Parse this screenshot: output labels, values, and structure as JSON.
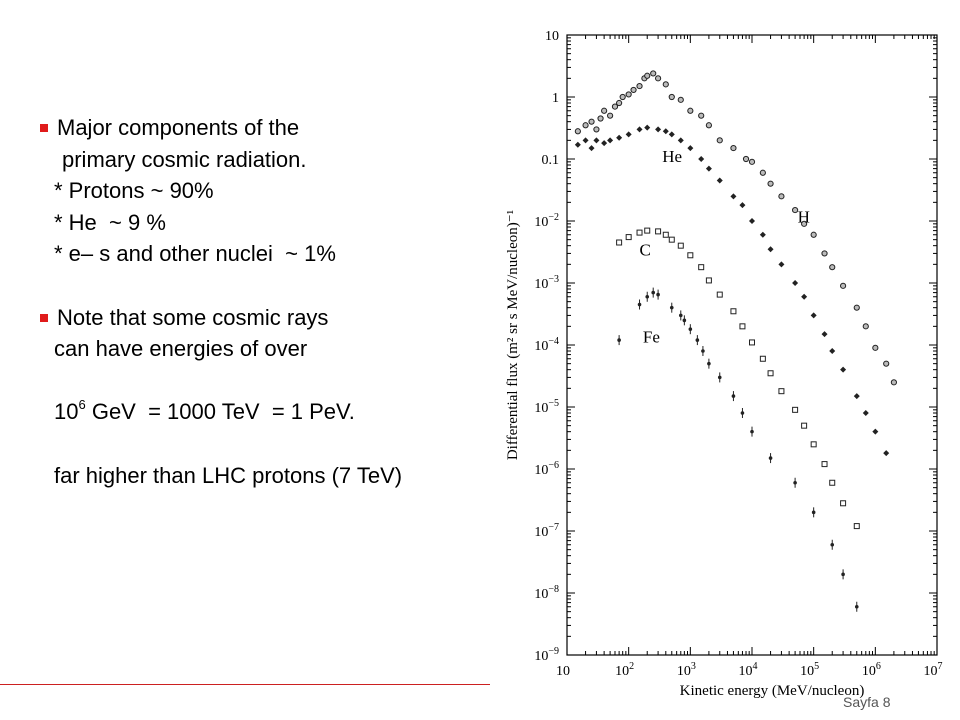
{
  "slide": {
    "bullets": [
      {
        "lines": [
          "Major components of the",
          "primary cosmic radiation.",
          "* Protons ~ 90%",
          "* He  ~ 9 %",
          "* e– s and other nuclei  ~ 1%"
        ]
      },
      {
        "lines": [
          "Note that some cosmic rays",
          "can have energies of over"
        ]
      }
    ],
    "energy_base": "10",
    "energy_exp": "6",
    "energy_rest": " GeV  = 1000 TeV  = 1 PeV.",
    "comparison": "far higher than LHC protons (7 TeV)",
    "footer": "Sayfa 8",
    "accent_color": "#e01b1b"
  },
  "chart_data": {
    "type": "scatter",
    "xlabel": "Kinetic energy (MeV/nucleon)",
    "ylabel": "Differential flux (m² sr s MeV/nucleon)⁻¹",
    "xscale": "log",
    "yscale": "log",
    "xlim": [
      10,
      10000000
    ],
    "ylim": [
      1e-09,
      10
    ],
    "x_ticks": [
      {
        "base": "10",
        "exp": ""
      },
      {
        "base": "10",
        "exp": "2"
      },
      {
        "base": "10",
        "exp": "3"
      },
      {
        "base": "10",
        "exp": "4"
      },
      {
        "base": "10",
        "exp": "5"
      },
      {
        "base": "10",
        "exp": "6"
      },
      {
        "base": "10",
        "exp": "7"
      }
    ],
    "y_ticks": [
      {
        "base": "10",
        "exp": ""
      },
      {
        "base": "1",
        "exp": ""
      },
      {
        "base": "0.1",
        "exp": ""
      },
      {
        "base": "10",
        "exp": "−2"
      },
      {
        "base": "10",
        "exp": "−3"
      },
      {
        "base": "10",
        "exp": "−4"
      },
      {
        "base": "10",
        "exp": "−5"
      },
      {
        "base": "10",
        "exp": "−6"
      },
      {
        "base": "10",
        "exp": "−7"
      },
      {
        "base": "10",
        "exp": "−8"
      },
      {
        "base": "10",
        "exp": "−9"
      }
    ],
    "series": [
      {
        "name": "H",
        "marker": "circle",
        "points": [
          [
            15,
            0.28
          ],
          [
            20,
            0.35
          ],
          [
            25,
            0.4
          ],
          [
            30,
            0.3
          ],
          [
            35,
            0.45
          ],
          [
            40,
            0.6
          ],
          [
            50,
            0.5
          ],
          [
            60,
            0.7
          ],
          [
            70,
            0.8
          ],
          [
            80,
            1.0
          ],
          [
            100,
            1.1
          ],
          [
            120,
            1.3
          ],
          [
            150,
            1.5
          ],
          [
            180,
            2.0
          ],
          [
            200,
            2.2
          ],
          [
            250,
            2.4
          ],
          [
            300,
            2.0
          ],
          [
            400,
            1.6
          ],
          [
            500,
            1.0
          ],
          [
            700,
            0.9
          ],
          [
            1000,
            0.6
          ],
          [
            1500,
            0.5
          ],
          [
            2000,
            0.35
          ],
          [
            3000,
            0.2
          ],
          [
            5000,
            0.15
          ],
          [
            8000,
            0.1
          ],
          [
            10000,
            0.09
          ],
          [
            15000,
            0.06
          ],
          [
            20000,
            0.04
          ],
          [
            30000,
            0.025
          ],
          [
            50000,
            0.015
          ],
          [
            70000,
            0.009
          ],
          [
            100000,
            0.006
          ],
          [
            150000,
            0.003
          ],
          [
            200000,
            0.0018
          ],
          [
            300000,
            0.0009
          ],
          [
            500000,
            0.0004
          ],
          [
            700000,
            0.0002
          ],
          [
            1000000,
            9e-05
          ],
          [
            1500000,
            5e-05
          ],
          [
            2000000,
            2.5e-05
          ]
        ]
      },
      {
        "name": "He",
        "marker": "diamond",
        "points": [
          [
            15,
            0.17
          ],
          [
            20,
            0.2
          ],
          [
            25,
            0.15
          ],
          [
            30,
            0.2
          ],
          [
            40,
            0.18
          ],
          [
            50,
            0.2
          ],
          [
            70,
            0.22
          ],
          [
            100,
            0.25
          ],
          [
            150,
            0.3
          ],
          [
            200,
            0.32
          ],
          [
            300,
            0.3
          ],
          [
            400,
            0.28
          ],
          [
            500,
            0.25
          ],
          [
            700,
            0.2
          ],
          [
            1000,
            0.15
          ],
          [
            1500,
            0.1
          ],
          [
            2000,
            0.07
          ],
          [
            3000,
            0.045
          ],
          [
            5000,
            0.025
          ],
          [
            7000,
            0.018
          ],
          [
            10000,
            0.01
          ],
          [
            15000,
            0.006
          ],
          [
            20000,
            0.0035
          ],
          [
            30000,
            0.002
          ],
          [
            50000,
            0.001
          ],
          [
            70000,
            0.0006
          ],
          [
            100000,
            0.0003
          ],
          [
            150000,
            0.00015
          ],
          [
            200000,
            8e-05
          ],
          [
            300000,
            4e-05
          ],
          [
            500000,
            1.5e-05
          ],
          [
            700000,
            8e-06
          ],
          [
            1000000,
            4e-06
          ],
          [
            1500000,
            1.8e-06
          ]
        ]
      },
      {
        "name": "C",
        "marker": "square",
        "points": [
          [
            70,
            0.0045
          ],
          [
            100,
            0.0055
          ],
          [
            150,
            0.0065
          ],
          [
            200,
            0.007
          ],
          [
            300,
            0.0068
          ],
          [
            400,
            0.006
          ],
          [
            500,
            0.005
          ],
          [
            700,
            0.004
          ],
          [
            1000,
            0.0028
          ],
          [
            1500,
            0.0018
          ],
          [
            2000,
            0.0011
          ],
          [
            3000,
            0.00065
          ],
          [
            5000,
            0.00035
          ],
          [
            7000,
            0.0002
          ],
          [
            10000,
            0.00011
          ],
          [
            15000,
            6e-05
          ],
          [
            20000,
            3.5e-05
          ],
          [
            30000,
            1.8e-05
          ],
          [
            50000,
            9e-06
          ],
          [
            70000,
            5e-06
          ],
          [
            100000,
            2.5e-06
          ],
          [
            150000,
            1.2e-06
          ],
          [
            200000,
            6e-07
          ],
          [
            300000,
            2.8e-07
          ],
          [
            500000,
            1.2e-07
          ]
        ]
      },
      {
        "name": "Fe",
        "marker": "dot",
        "points": [
          [
            70,
            0.00012
          ],
          [
            150,
            0.00045
          ],
          [
            200,
            0.0006
          ],
          [
            250,
            0.0007
          ],
          [
            300,
            0.00065
          ],
          [
            500,
            0.0004
          ],
          [
            700,
            0.0003
          ],
          [
            800,
            0.00025
          ],
          [
            1000,
            0.00018
          ],
          [
            1300,
            0.00012
          ],
          [
            1600,
            8e-05
          ],
          [
            2000,
            5e-05
          ],
          [
            3000,
            3e-05
          ],
          [
            5000,
            1.5e-05
          ],
          [
            7000,
            8e-06
          ],
          [
            10000,
            4e-06
          ],
          [
            20000,
            1.5e-06
          ],
          [
            50000,
            6e-07
          ],
          [
            100000,
            2e-07
          ],
          [
            200000,
            6e-08
          ],
          [
            300000,
            2e-08
          ],
          [
            500000,
            6e-09
          ]
        ]
      }
    ],
    "labels": [
      {
        "text": "He",
        "x": 350,
        "y": 0.09
      },
      {
        "text": "H",
        "x": 55000,
        "y": 0.0095
      },
      {
        "text": "C",
        "x": 150,
        "y": 0.0028
      },
      {
        "text": "Fe",
        "x": 170,
        "y": 0.00011
      }
    ]
  }
}
